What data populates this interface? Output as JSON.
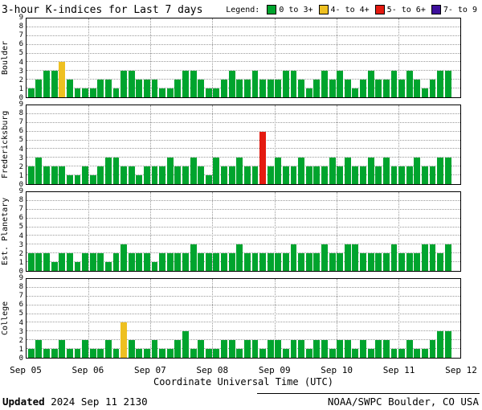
{
  "header": {
    "title": "3-hour K-indices for Last 7 days",
    "legend_label": "Legend:",
    "legend_items": [
      {
        "label": "0 to 3+",
        "color": "#00a42e"
      },
      {
        "label": "4- to 4+",
        "color": "#eec021"
      },
      {
        "label": "5- to 6+",
        "color": "#e41a10"
      },
      {
        "label": "7- to 9",
        "color": "#3d0f9b"
      }
    ]
  },
  "footer": {
    "updated_label": "Updated",
    "updated_value": " 2024 Sep 11 2130",
    "credit": "NOAA/SWPC Boulder, CO USA"
  },
  "chart_data": {
    "type": "bar",
    "title": "3-hour K-indices for Last 7 days",
    "xlabel": "Coordinate Universal Time (UTC)",
    "x_tick_labels": [
      "Sep 05",
      "Sep 06",
      "Sep 07",
      "Sep 08",
      "Sep 09",
      "Sep 10",
      "Sep 11",
      "Sep 12"
    ],
    "ylim": [
      0,
      9
    ],
    "y_tick_labels": [
      0,
      1,
      2,
      3,
      4,
      5,
      6,
      7,
      8,
      9
    ],
    "days": 7,
    "bars_per_day": 8,
    "slots": 56,
    "interval_hours": 3,
    "grid": true,
    "colors": {
      "k0_3": "#00a42e",
      "k4": "#eec021",
      "k5_6": "#e41a10",
      "k7_9": "#3d0f9b"
    },
    "series": [
      {
        "name": "Boulder",
        "values": [
          1,
          2,
          3,
          3,
          4,
          2,
          1,
          1,
          1,
          2,
          2,
          1,
          3,
          3,
          2,
          2,
          2,
          1,
          1,
          2,
          3,
          3,
          2,
          1,
          1,
          2,
          3,
          2,
          2,
          3,
          2,
          2,
          2,
          3,
          3,
          2,
          1,
          2,
          3,
          2,
          3,
          2,
          1,
          2,
          3,
          2,
          2,
          3,
          2,
          3,
          2,
          1,
          2,
          3,
          3
        ]
      },
      {
        "name": "Fredericksburg",
        "values": [
          2,
          3,
          2,
          2,
          2,
          1,
          1,
          2,
          1,
          2,
          3,
          3,
          2,
          2,
          1,
          2,
          2,
          2,
          3,
          2,
          2,
          3,
          2,
          1,
          3,
          2,
          2,
          3,
          2,
          2,
          6,
          2,
          3,
          2,
          2,
          3,
          2,
          2,
          2,
          3,
          2,
          3,
          2,
          2,
          3,
          2,
          3,
          2,
          2,
          2,
          3,
          2,
          2,
          3,
          3
        ]
      },
      {
        "name": "Est. Planetary",
        "values": [
          2,
          2,
          2,
          1,
          2,
          2,
          1,
          2,
          2,
          2,
          1,
          2,
          3,
          2,
          2,
          2,
          1,
          2,
          2,
          2,
          2,
          3,
          2,
          2,
          2,
          2,
          2,
          3,
          2,
          2,
          2,
          2,
          2,
          2,
          3,
          2,
          2,
          2,
          3,
          2,
          2,
          3,
          3,
          2,
          2,
          2,
          2,
          3,
          2,
          2,
          2,
          3,
          3,
          2,
          3
        ]
      },
      {
        "name": "College",
        "values": [
          1,
          2,
          1,
          1,
          2,
          1,
          1,
          2,
          1,
          1,
          2,
          1,
          4,
          2,
          1,
          1,
          2,
          1,
          1,
          2,
          3,
          1,
          2,
          1,
          1,
          2,
          2,
          1,
          2,
          2,
          1,
          2,
          2,
          1,
          2,
          2,
          1,
          2,
          2,
          1,
          2,
          2,
          1,
          2,
          1,
          2,
          2,
          1,
          1,
          2,
          1,
          1,
          2,
          3,
          3
        ]
      }
    ]
  }
}
